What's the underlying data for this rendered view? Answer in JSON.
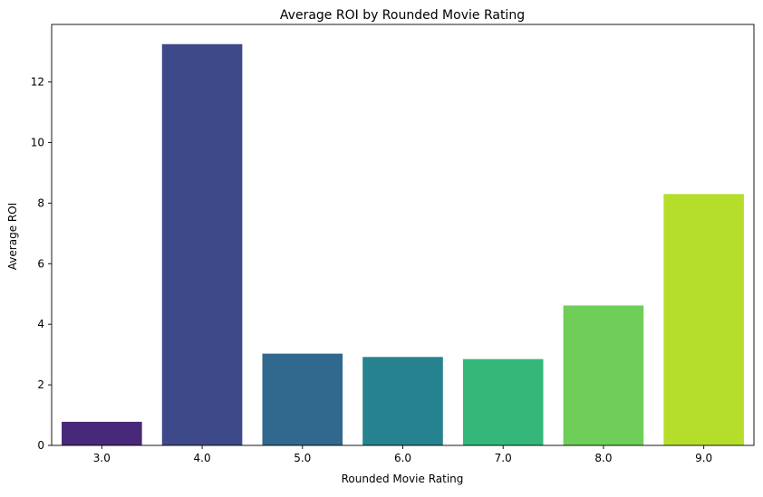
{
  "chart_data": {
    "type": "bar",
    "title": "Average ROI by Rounded Movie Rating",
    "xlabel": "Rounded Movie Rating",
    "ylabel": "Average ROI",
    "categories": [
      "3.0",
      "4.0",
      "5.0",
      "6.0",
      "7.0",
      "8.0",
      "9.0"
    ],
    "values": [
      0.78,
      13.25,
      3.03,
      2.92,
      2.85,
      4.62,
      8.3
    ],
    "colors": [
      "#482878",
      "#3e4989",
      "#31688e",
      "#26828e",
      "#35b779",
      "#6ece58",
      "#b5de2b"
    ],
    "ylim": [
      0,
      13.9
    ],
    "yticks": [
      0,
      2,
      4,
      6,
      8,
      10,
      12
    ],
    "ytick_labels": [
      "0",
      "2",
      "4",
      "6",
      "8",
      "10",
      "12"
    ],
    "grid": false,
    "legend": "none"
  }
}
